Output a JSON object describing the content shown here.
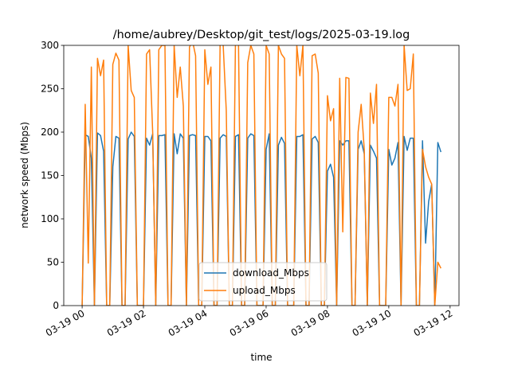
{
  "chart_data": {
    "type": "line",
    "title": "/home/aubrey/Desktop/git_test/logs/2025-03-19.log",
    "xlabel": "time",
    "ylabel": "network speed (Mbps)",
    "x": [
      0.0,
      0.1,
      0.2,
      0.3,
      0.4,
      0.5,
      0.6,
      0.7,
      0.8,
      0.9,
      1.0,
      1.1,
      1.2,
      1.3,
      1.4,
      1.5,
      1.6,
      1.7,
      1.8,
      1.9,
      2.0,
      2.1,
      2.2,
      2.3,
      2.4,
      2.5,
      2.6,
      2.7,
      2.8,
      2.9,
      3.0,
      3.1,
      3.2,
      3.3,
      3.4,
      3.5,
      3.6,
      3.7,
      3.8,
      3.9,
      4.0,
      4.1,
      4.2,
      4.3,
      4.4,
      4.5,
      4.6,
      4.7,
      4.8,
      4.9,
      5.0,
      5.1,
      5.2,
      5.3,
      5.4,
      5.5,
      5.6,
      5.7,
      5.8,
      5.9,
      6.0,
      6.1,
      6.2,
      6.3,
      6.4,
      6.5,
      6.6,
      6.7,
      6.8,
      6.9,
      7.0,
      7.1,
      7.2,
      7.3,
      7.4,
      7.5,
      7.6,
      7.7,
      7.8,
      7.9,
      8.0,
      8.1,
      8.2,
      8.3,
      8.4,
      8.5,
      8.6,
      8.7,
      8.8,
      8.9,
      9.0,
      9.1,
      9.2,
      9.3,
      9.4,
      9.5,
      9.6,
      9.7,
      9.8,
      9.9,
      10.0,
      10.1,
      10.2,
      10.3,
      10.4,
      10.5,
      10.6,
      10.7,
      10.8,
      10.9,
      11.0,
      11.1,
      11.2,
      11.3,
      11.4,
      11.5,
      11.6,
      11.7
    ],
    "series": [
      {
        "name": "download_Mbps",
        "color": "#1f77b4",
        "values": [
          0,
          197,
          195,
          170,
          0,
          199,
          196,
          178,
          0,
          0,
          160,
          195,
          193,
          0,
          0,
          192,
          200,
          195,
          0,
          0,
          0,
          193,
          185,
          198,
          0,
          196,
          196,
          197,
          0,
          0,
          198,
          175,
          198,
          193,
          0,
          196,
          197,
          196,
          0,
          0,
          195,
          195,
          190,
          0,
          0,
          193,
          197,
          195,
          0,
          0,
          195,
          197,
          0,
          0,
          193,
          198,
          196,
          0,
          0,
          0,
          180,
          198,
          0,
          0,
          185,
          194,
          187,
          0,
          0,
          0,
          195,
          195,
          197,
          0,
          0,
          192,
          195,
          188,
          0,
          0,
          155,
          163,
          148,
          0,
          190,
          185,
          190,
          190,
          0,
          0,
          180,
          190,
          175,
          0,
          185,
          178,
          170,
          0,
          0,
          0,
          180,
          162,
          170,
          188,
          0,
          195,
          179,
          193,
          193,
          0,
          0,
          190,
          72,
          120,
          140,
          0,
          188,
          177
        ]
      },
      {
        "name": "upload_Mbps",
        "color": "#ff7f0e",
        "values": [
          0,
          232,
          49,
          275,
          0,
          285,
          265,
          283,
          0,
          0,
          278,
          291,
          283,
          0,
          0,
          300,
          248,
          240,
          0,
          0,
          0,
          290,
          295,
          200,
          0,
          295,
          300,
          300,
          0,
          0,
          300,
          240,
          275,
          230,
          0,
          298,
          305,
          288,
          0,
          0,
          295,
          255,
          275,
          0,
          0,
          305,
          300,
          225,
          0,
          0,
          305,
          300,
          0,
          0,
          280,
          300,
          290,
          0,
          0,
          0,
          300,
          290,
          0,
          0,
          300,
          290,
          285,
          0,
          0,
          0,
          300,
          265,
          300,
          0,
          0,
          288,
          290,
          268,
          0,
          0,
          242,
          213,
          227,
          0,
          262,
          85,
          263,
          262,
          0,
          0,
          200,
          232,
          180,
          0,
          245,
          210,
          255,
          0,
          0,
          0,
          240,
          240,
          230,
          255,
          0,
          300,
          248,
          250,
          290,
          0,
          0,
          180,
          160,
          148,
          140,
          0,
          50,
          43
        ]
      }
    ],
    "xlim": [
      -0.6,
      12.29
    ],
    "ylim": [
      0,
      300
    ],
    "xticks": [
      {
        "value": 0,
        "label": "03-19 00"
      },
      {
        "value": 2,
        "label": "03-19 02"
      },
      {
        "value": 4,
        "label": "03-19 04"
      },
      {
        "value": 6,
        "label": "03-19 06"
      },
      {
        "value": 8,
        "label": "03-19 08"
      },
      {
        "value": 10,
        "label": "03-19 10"
      },
      {
        "value": 12,
        "label": "03-19 12"
      }
    ],
    "yticks": [
      0,
      50,
      100,
      150,
      200,
      250,
      300
    ],
    "legend": "lower center"
  }
}
